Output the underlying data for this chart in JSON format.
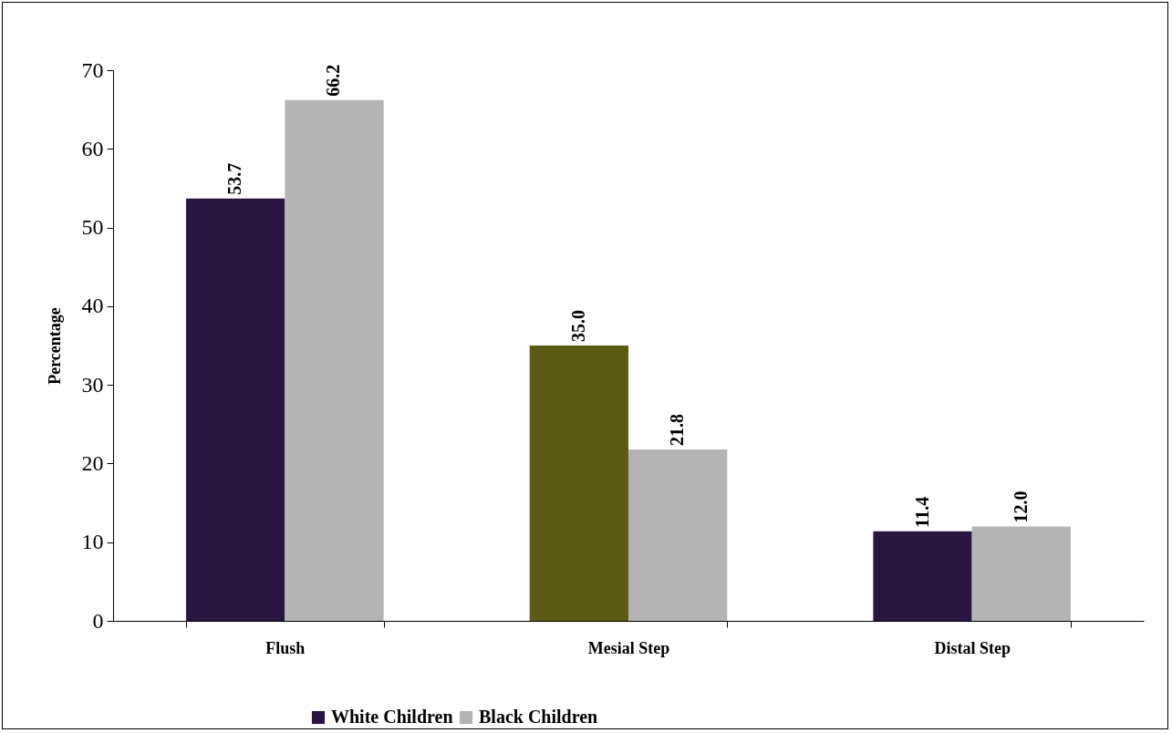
{
  "chart_data": {
    "type": "bar",
    "ylabel": "Percentage",
    "categories": [
      "Flush",
      "Mesial Step",
      "Distal Step"
    ],
    "series": [
      {
        "name": "White Children",
        "color": "#2a1440",
        "colors": [
          "#2a1440",
          "#5c5a14",
          "#2a1440"
        ],
        "values": [
          53.7,
          35.0,
          11.4
        ],
        "value_labels": [
          "53.7",
          "35.0",
          "11.4"
        ]
      },
      {
        "name": "Black Children",
        "color": "#b4b4b4",
        "values": [
          66.2,
          21.8,
          12.0
        ],
        "value_labels": [
          "66.2",
          "21.8",
          "12.0"
        ]
      }
    ],
    "ylim": [
      0,
      70
    ],
    "yticks": [
      0,
      10,
      20,
      30,
      40,
      50,
      60,
      70
    ],
    "legend": "bottom"
  }
}
